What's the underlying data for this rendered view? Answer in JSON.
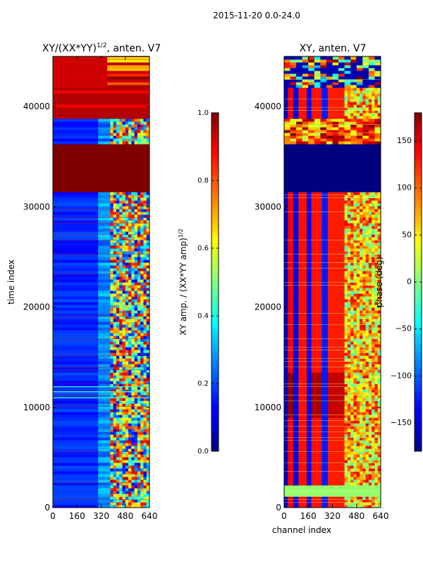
{
  "suptitle": "2015-11-20 0.0-24.0",
  "chart_data": [
    {
      "type": "heatmap",
      "title_main": "XY/(XX*YY)",
      "title_sup": "1/2",
      "title_rest": ", anten. V7",
      "xlabel": "",
      "ylabel": "time index",
      "xlim": [
        0,
        640
      ],
      "ylim": [
        0,
        45000
      ],
      "xticks": [
        0,
        160,
        320,
        480,
        640
      ],
      "yticks": [
        0,
        10000,
        20000,
        30000,
        40000
      ],
      "colorbar": {
        "label_main": "XY amp. / (XX*YY amp)",
        "label_sup": "1/2",
        "range": [
          0.0,
          1.0
        ],
        "ticks": [
          "0.0",
          "0.2",
          "0.4",
          "0.6",
          "0.8",
          "1.0"
        ]
      }
    },
    {
      "type": "heatmap",
      "title": "XY, anten. V7",
      "xlabel": "channel index",
      "ylabel": "",
      "xlim": [
        0,
        640
      ],
      "ylim": [
        0,
        45000
      ],
      "xticks": [
        0,
        160,
        320,
        480,
        640
      ],
      "yticks": [
        0,
        10000,
        20000,
        30000,
        40000
      ],
      "colorbar": {
        "label": "phase (deg)",
        "range": [
          -180,
          180
        ],
        "ticks": [
          "150",
          "100",
          "50",
          "0",
          "−50",
          "−100",
          "−150"
        ]
      }
    }
  ],
  "colors": {
    "jet_dark_blue": "#00007f",
    "jet_blue": "#0000ff",
    "jet_cyan": "#00ffff",
    "jet_yellow": "#ffff00",
    "jet_red": "#ff0000",
    "jet_dark_red": "#7f0000"
  }
}
